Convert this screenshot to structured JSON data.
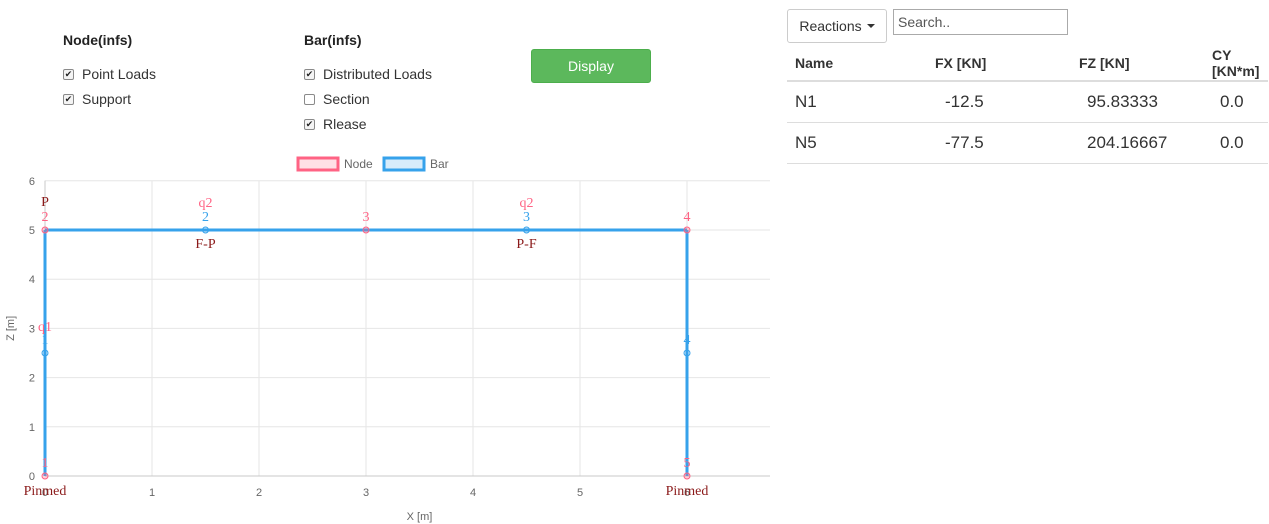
{
  "node_group": {
    "title": "Node(infs)",
    "options": [
      {
        "label": "Point Loads",
        "checked": true
      },
      {
        "label": "Support",
        "checked": true
      }
    ]
  },
  "bar_group": {
    "title": "Bar(infs)",
    "options": [
      {
        "label": "Distributed Loads",
        "checked": true
      },
      {
        "label": "Section",
        "checked": false
      },
      {
        "label": "Rlease",
        "checked": true
      }
    ]
  },
  "display_button": "Display",
  "reactions_dropdown": "Reactions",
  "search": {
    "placeholder": "Search..",
    "value": ""
  },
  "table": {
    "headers": [
      "Name",
      "FX [KN]",
      "FZ [KN]",
      "CY [KN*m]"
    ],
    "rows": [
      [
        "N1",
        "-12.5",
        "95.83333",
        "0.0"
      ],
      [
        "N5",
        "-77.5",
        "204.16667",
        "0.0"
      ]
    ]
  },
  "chart_data": {
    "type": "scatter",
    "title": "",
    "xlabel": "X [m]",
    "ylabel": "Z [m]",
    "xlim": [
      0,
      7
    ],
    "ylim": [
      0,
      6
    ],
    "xticks": [
      "0",
      "1",
      "2",
      "3",
      "4",
      "5",
      "6",
      "7"
    ],
    "yticks": [
      "0",
      "1",
      "2",
      "3",
      "4",
      "5",
      "6"
    ],
    "grid": true,
    "legend_position": "top",
    "legend": [
      {
        "name": "Node",
        "color": "#ff6384"
      },
      {
        "name": "Bar",
        "color": "#36a2eb"
      }
    ],
    "node_color": "#ff6384",
    "bar_color": "#36a2eb",
    "label_dark_color": "#8b1a1a",
    "nodes": [
      {
        "id": "1",
        "x": 0,
        "z": 0,
        "support": "Pinmed",
        "load": ""
      },
      {
        "id": "2",
        "x": 0,
        "z": 5,
        "support": "",
        "load": "P"
      },
      {
        "id": "3",
        "x": 3,
        "z": 5,
        "support": "",
        "load": ""
      },
      {
        "id": "4",
        "x": 6,
        "z": 5,
        "support": "",
        "load": ""
      },
      {
        "id": "5",
        "x": 6,
        "z": 0,
        "support": "Pinmed",
        "load": ""
      }
    ],
    "bars": [
      {
        "id": "1",
        "from": [
          0,
          0
        ],
        "to": [
          0,
          5
        ],
        "mid": [
          0,
          2.5
        ],
        "load": "q1",
        "release": ""
      },
      {
        "id": "2",
        "from": [
          0,
          5
        ],
        "to": [
          3,
          5
        ],
        "mid": [
          1.5,
          5
        ],
        "load": "q2",
        "release": "F-P"
      },
      {
        "id": "3",
        "from": [
          3,
          5
        ],
        "to": [
          6,
          5
        ],
        "mid": [
          4.5,
          5
        ],
        "load": "q2",
        "release": "P-F"
      },
      {
        "id": "4",
        "from": [
          6,
          5
        ],
        "to": [
          6,
          0
        ],
        "mid": [
          6,
          2.5
        ],
        "load": "",
        "release": ""
      }
    ]
  }
}
